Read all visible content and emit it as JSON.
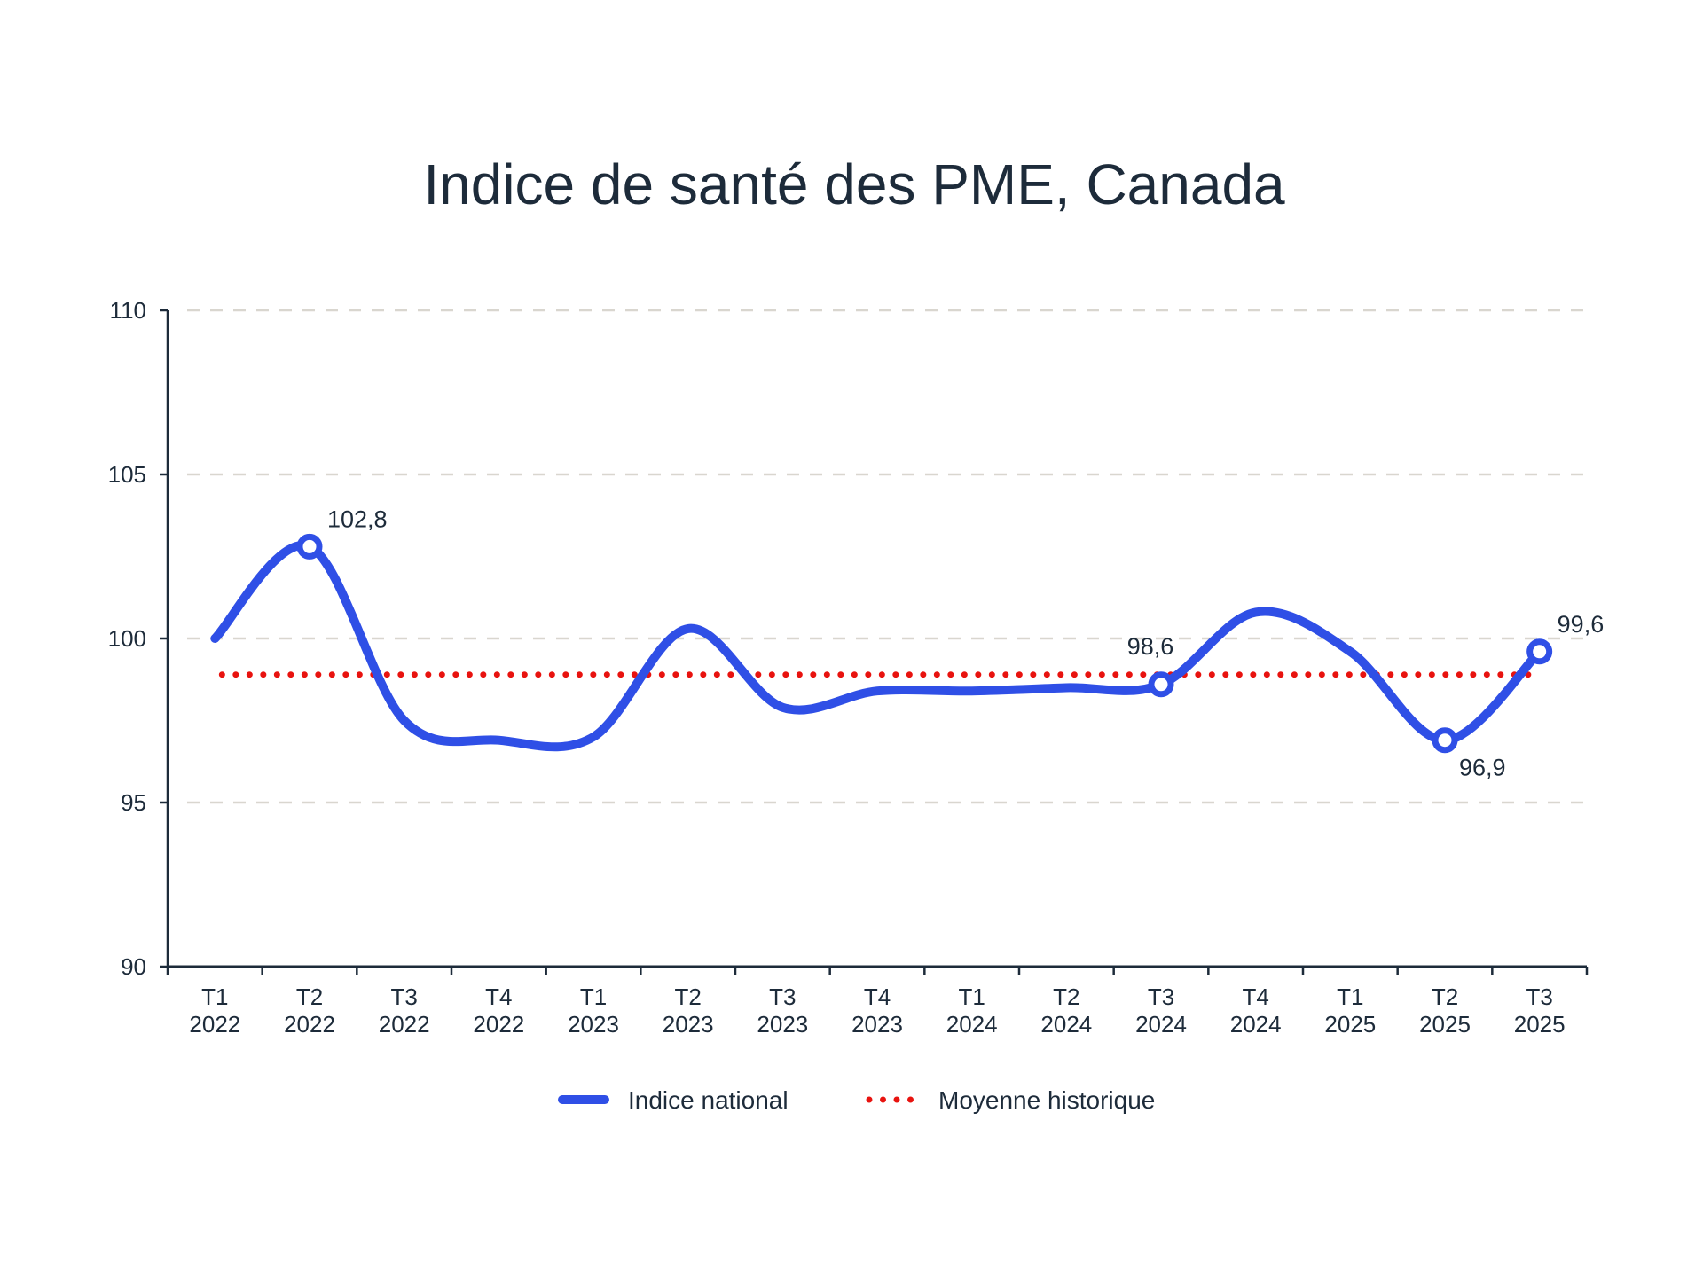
{
  "chart_data": {
    "type": "line",
    "title": "Indice de santé des PME, Canada",
    "xlabel": "",
    "ylabel": "",
    "ylim": [
      90,
      110
    ],
    "yticks": [
      90,
      95,
      100,
      105,
      110
    ],
    "ytick_labels": [
      "90",
      "95",
      "100",
      "105",
      "110"
    ],
    "grid": true,
    "legend_position": "bottom",
    "categories": [
      [
        "T1",
        "2022"
      ],
      [
        "T2",
        "2022"
      ],
      [
        "T3",
        "2022"
      ],
      [
        "T4",
        "2022"
      ],
      [
        "T1",
        "2023"
      ],
      [
        "T2",
        "2023"
      ],
      [
        "T3",
        "2023"
      ],
      [
        "T4",
        "2023"
      ],
      [
        "T1",
        "2024"
      ],
      [
        "T2",
        "2024"
      ],
      [
        "T3",
        "2024"
      ],
      [
        "T4",
        "2024"
      ],
      [
        "T1",
        "2025"
      ],
      [
        "T2",
        "2025"
      ],
      [
        "T3",
        "2025"
      ]
    ],
    "series": [
      {
        "name": "Indice national",
        "style": "solid-smooth",
        "color": "#2f4fe6",
        "values": [
          100.0,
          102.8,
          97.5,
          96.9,
          97.0,
          100.3,
          97.9,
          98.4,
          98.4,
          98.5,
          98.6,
          100.8,
          99.6,
          96.9,
          99.6
        ]
      },
      {
        "name": "Moyenne historique",
        "style": "dotted",
        "color": "#e8130f",
        "values": [
          98.9,
          98.9,
          98.9,
          98.9,
          98.9,
          98.9,
          98.9,
          98.9,
          98.9,
          98.9,
          98.9,
          98.9,
          98.9,
          98.9,
          98.9
        ]
      }
    ],
    "annotations": [
      {
        "index": 1,
        "text": "102,8",
        "position": "above-right"
      },
      {
        "index": 10,
        "text": "98,6",
        "position": "above"
      },
      {
        "index": 13,
        "text": "96,9",
        "position": "below-right"
      },
      {
        "index": 14,
        "text": "99,6",
        "position": "above-right"
      }
    ]
  }
}
